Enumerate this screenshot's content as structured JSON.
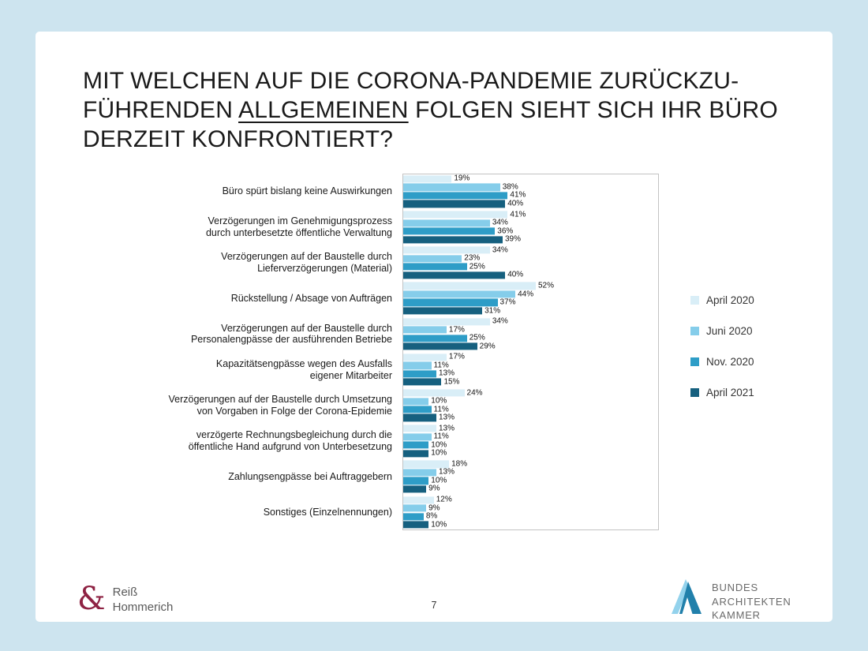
{
  "slide": {
    "title": {
      "line1": "MIT WELCHEN AUF DIE CORONA-PANDEMIE ZURÜCKZU-",
      "line2_pre": "FÜHRENDEN ",
      "line2_underline": "ALLGEMEINEN",
      "line2_post": " FOLGEN SIEHT SICH IHR BÜRO",
      "line3": "DERZEIT KONFRONTIERT?"
    },
    "page_number": "7",
    "footer_left": {
      "amp": "&",
      "name_line1": "Reiß",
      "name_line2": "Hommerich"
    },
    "footer_right": {
      "line1": "BUNDES",
      "line2": "ARCHITEKTEN",
      "line3": "KAMMER"
    }
  },
  "colors": {
    "background": "#cde4ef",
    "slide": "#ffffff",
    "plot_border": "#c3c3c3",
    "ampersand": "#8e2243"
  },
  "chart_data": {
    "type": "bar",
    "orientation": "horizontal",
    "unit": "%",
    "value_axis_range": [
      0,
      100
    ],
    "grid": false,
    "legend_position": "right",
    "categories": [
      "Büro spürt bislang keine Auswirkungen",
      "Verzögerungen im Genehmigungsprozess\ndurch unterbesetzte öffentliche Verwaltung",
      "Verzögerungen auf der Baustelle durch\nLieferverzögerungen (Material)",
      "Rückstellung / Absage von Aufträgen",
      "Verzögerungen auf der Baustelle durch\nPersonalengpässe der ausführenden Betriebe",
      "Kapazitätsengpässe wegen des Ausfalls\neigener Mitarbeiter",
      "Verzögerungen auf der Baustelle durch Umsetzung\nvon Vorgaben in Folge der Corona-Epidemie",
      "verzögerte Rechnungsbegleichung durch die\nöffentliche Hand aufgrund von Unterbesetzung",
      "Zahlungsengpässe bei Auftraggebern",
      "Sonstiges (Einzelnennungen)"
    ],
    "series": [
      {
        "name": "April 2020",
        "color": "#d9eef7",
        "values": [
          19,
          41,
          34,
          52,
          34,
          17,
          24,
          13,
          18,
          12
        ]
      },
      {
        "name": "Juni 2020",
        "color": "#85cdea",
        "values": [
          38,
          34,
          23,
          44,
          17,
          11,
          10,
          11,
          13,
          9
        ]
      },
      {
        "name": "Nov. 2020",
        "color": "#2e9dc7",
        "values": [
          41,
          36,
          25,
          37,
          25,
          13,
          11,
          10,
          10,
          8
        ]
      },
      {
        "name": "April 2021",
        "color": "#16607f",
        "values": [
          40,
          39,
          40,
          31,
          29,
          15,
          13,
          10,
          9,
          10
        ]
      }
    ]
  }
}
